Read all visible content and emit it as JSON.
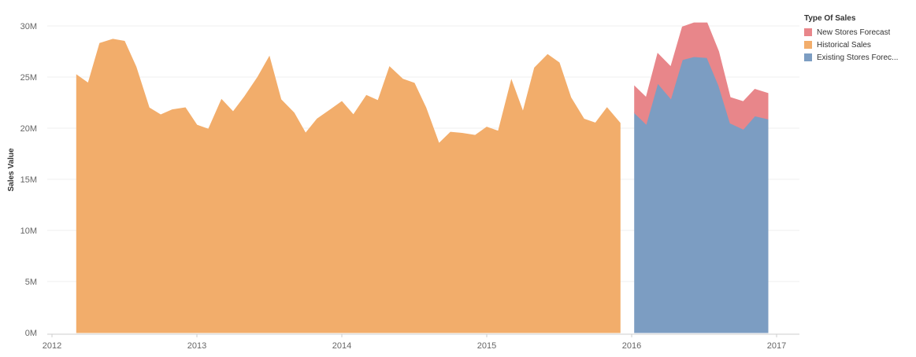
{
  "legend": {
    "title": "Type Of Sales",
    "items": [
      {
        "label": "New Stores Forecast",
        "color": "#e8868a"
      },
      {
        "label": "Historical Sales",
        "color": "#f2ad6b"
      },
      {
        "label": "Existing Stores Forec...",
        "color": "#7c9dc2"
      }
    ]
  },
  "chart_data": {
    "type": "area",
    "ylabel": "Sales Value",
    "ylim": [
      0,
      30000000
    ],
    "y_ticks": [
      {
        "value": 0,
        "label": "0M"
      },
      {
        "value": 5000000,
        "label": "5M"
      },
      {
        "value": 10000000,
        "label": "10M"
      },
      {
        "value": 15000000,
        "label": "15M"
      },
      {
        "value": 20000000,
        "label": "20M"
      },
      {
        "value": 25000000,
        "label": "25M"
      },
      {
        "value": 30000000,
        "label": "30M"
      }
    ],
    "x_ticks": [
      {
        "value": 2012,
        "label": "2012"
      },
      {
        "value": 2013,
        "label": "2013"
      },
      {
        "value": 2014,
        "label": "2014"
      },
      {
        "value": 2015,
        "label": "2015"
      },
      {
        "value": 2016,
        "label": "2016"
      },
      {
        "value": 2017,
        "label": "2017"
      }
    ],
    "xlim": [
      2012,
      2017
    ],
    "grid": true,
    "legend_position": "right",
    "series": [
      {
        "name": "Historical Sales",
        "color": "#f2ad6b",
        "x": [
          2012.17,
          2012.25,
          2012.33,
          2012.42,
          2012.5,
          2012.58,
          2012.67,
          2012.75,
          2012.83,
          2012.92,
          2013.0,
          2013.08,
          2013.17,
          2013.25,
          2013.33,
          2013.42,
          2013.5,
          2013.58,
          2013.67,
          2013.75,
          2013.83,
          2013.92,
          2014.0,
          2014.08,
          2014.17,
          2014.25,
          2014.33,
          2014.42,
          2014.5,
          2014.58,
          2014.67,
          2014.75,
          2014.83,
          2014.92,
          2015.0,
          2015.08,
          2015.17,
          2015.25,
          2015.33,
          2015.42,
          2015.5,
          2015.58,
          2015.67,
          2015.75,
          2015.83,
          2015.92
        ],
        "values": [
          25200000,
          24400000,
          28300000,
          28700000,
          28500000,
          26000000,
          22000000,
          21300000,
          21800000,
          22000000,
          20300000,
          19900000,
          22800000,
          21600000,
          23100000,
          25000000,
          27000000,
          22800000,
          21500000,
          19500000,
          20900000,
          21800000,
          22600000,
          21300000,
          23200000,
          22700000,
          26000000,
          24800000,
          24400000,
          22000000,
          18500000,
          19600000,
          19500000,
          19300000,
          20100000,
          19700000,
          24700000,
          21600000,
          25900000,
          27200000,
          26400000,
          23000000,
          20900000,
          20500000,
          22000000,
          20500000
        ]
      },
      {
        "name": "Existing Stores Forec...",
        "color": "#7c9dc2",
        "x": [
          2016.02,
          2016.1,
          2016.18,
          2016.27,
          2016.35,
          2016.43,
          2016.52,
          2016.6,
          2016.68,
          2016.77,
          2016.85,
          2016.94
        ],
        "values": [
          21500000,
          20400000,
          24400000,
          22900000,
          26700000,
          27000000,
          26900000,
          24200000,
          20500000,
          19900000,
          21200000,
          20900000
        ]
      },
      {
        "name": "New Stores Forecast",
        "color": "#e8868a",
        "stacked_on": "Existing Stores Forec...",
        "x": [
          2016.02,
          2016.1,
          2016.18,
          2016.27,
          2016.35,
          2016.43,
          2016.52,
          2016.6,
          2016.68,
          2016.77,
          2016.85,
          2016.94
        ],
        "values": [
          2600000,
          2600000,
          2900000,
          3100000,
          3200000,
          3300000,
          3400000,
          3300000,
          2500000,
          2700000,
          2600000,
          2500000
        ]
      }
    ]
  }
}
